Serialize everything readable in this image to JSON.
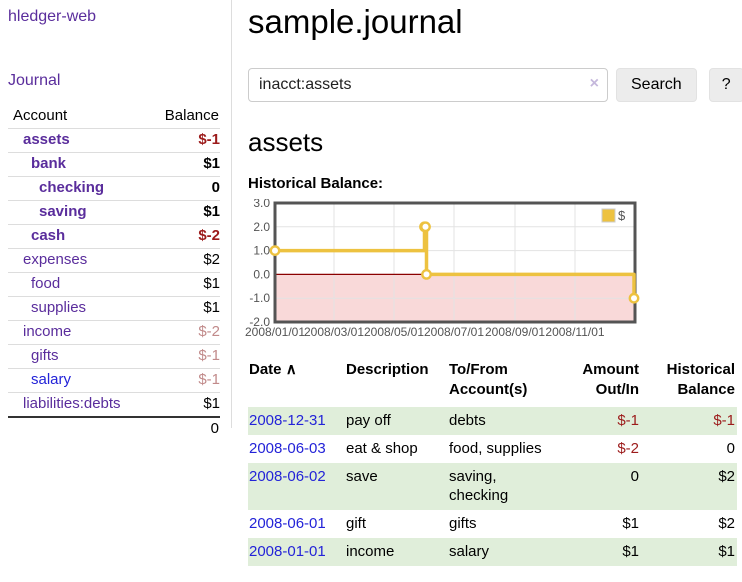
{
  "app": {
    "title": "hledger-web"
  },
  "sidebar": {
    "journal_link": "Journal",
    "accounts_table": {
      "headers": {
        "account": "Account",
        "balance": "Balance"
      },
      "rows": [
        {
          "name": "assets",
          "depth": 1,
          "bold": true,
          "link_color": "purple",
          "balance": "$-1",
          "balance_style": "neg-strong"
        },
        {
          "name": "bank",
          "depth": 2,
          "bold": true,
          "link_color": "purple",
          "balance": "$1",
          "balance_style": "pos"
        },
        {
          "name": "checking",
          "depth": 3,
          "bold": true,
          "link_color": "purple",
          "balance": "0",
          "balance_style": "pos"
        },
        {
          "name": "saving",
          "depth": 3,
          "bold": true,
          "link_color": "purple",
          "balance": "$1",
          "balance_style": "pos"
        },
        {
          "name": "cash",
          "depth": 2,
          "bold": true,
          "link_color": "purple",
          "balance": "$-2",
          "balance_style": "neg-strong"
        },
        {
          "name": "expenses",
          "depth": 1,
          "bold": false,
          "link_color": "purple",
          "balance": "$2",
          "balance_style": "pos"
        },
        {
          "name": "food",
          "depth": 2,
          "bold": false,
          "link_color": "purple",
          "balance": "$1",
          "balance_style": "pos"
        },
        {
          "name": "supplies",
          "depth": 2,
          "bold": false,
          "link_color": "purple",
          "balance": "$1",
          "balance_style": "pos"
        },
        {
          "name": "income",
          "depth": 1,
          "bold": false,
          "link_color": "purple",
          "balance": "$-2",
          "balance_style": "neg-soft"
        },
        {
          "name": "gifts",
          "depth": 2,
          "bold": false,
          "link_color": "purple",
          "balance": "$-1",
          "balance_style": "neg-soft"
        },
        {
          "name": "salary",
          "depth": 2,
          "bold": false,
          "link_color": "blue",
          "balance": "$-1",
          "balance_style": "neg-soft"
        },
        {
          "name": "liabilities:debts",
          "depth": 1,
          "bold": false,
          "link_color": "purple",
          "balance": "$1",
          "balance_style": "pos"
        }
      ],
      "total": "0"
    }
  },
  "main": {
    "title": "sample.journal",
    "search": {
      "value": "inacct:assets",
      "clear_icon": "×",
      "button": "Search",
      "help_button": "?"
    },
    "account_heading": "assets",
    "chart_label": "Historical Balance:"
  },
  "chart_data": {
    "type": "line",
    "title": "Historical Balance",
    "step": true,
    "legend_position": "top-right",
    "grid": true,
    "ylim": [
      -2.0,
      3.0
    ],
    "y_ticks": [
      "3.0",
      "2.0",
      "1.0",
      "0.0",
      "-1.0",
      "-2.0"
    ],
    "x_tick_labels": [
      "2008/01/01",
      "2008/03/01",
      "2008/05/01",
      "2008/07/01",
      "2008/09/01",
      "2008/11/01"
    ],
    "x_tick_days": [
      0,
      60,
      121,
      182,
      244,
      305
    ],
    "x_range_days": [
      0,
      366
    ],
    "series": [
      {
        "name": "$",
        "color": "#edc240",
        "points": [
          {
            "date": "2008-01-01",
            "day": 0,
            "value": 1
          },
          {
            "date": "2008-06-01",
            "day": 152,
            "value": 2
          },
          {
            "date": "2008-06-02",
            "day": 153,
            "value": 2
          },
          {
            "date": "2008-06-03",
            "day": 154,
            "value": 0
          },
          {
            "date": "2008-12-31",
            "day": 365,
            "value": -1
          }
        ]
      }
    ],
    "negative_region_color": "#f9d9d9",
    "zero_line_color": "#8b0000",
    "grid_color": "#e3e3e3",
    "border_color": "#545454",
    "tick_label_color": "#545454"
  },
  "register": {
    "sort_icon": "∧",
    "headers": [
      "Date",
      "Description",
      "To/From Account(s)",
      "Amount Out/In",
      "Historical Balance"
    ],
    "rows": [
      {
        "date": "2008-12-31",
        "description": "pay off",
        "accounts": "debts",
        "amount": "$-1",
        "amount_neg": true,
        "balance": "$-1",
        "balance_neg": true
      },
      {
        "date": "2008-06-03",
        "description": "eat & shop",
        "accounts": "food, supplies",
        "amount": "$-2",
        "amount_neg": true,
        "balance": "0",
        "balance_neg": false
      },
      {
        "date": "2008-06-02",
        "description": "save",
        "accounts": "saving, checking",
        "amount": "0",
        "amount_neg": false,
        "balance": "$2",
        "balance_neg": false
      },
      {
        "date": "2008-06-01",
        "description": "gift",
        "accounts": "gifts",
        "amount": "$1",
        "amount_neg": false,
        "balance": "$2",
        "balance_neg": false
      },
      {
        "date": "2008-01-01",
        "description": "income",
        "accounts": "salary",
        "amount": "$1",
        "amount_neg": false,
        "balance": "$1",
        "balance_neg": false
      }
    ]
  }
}
